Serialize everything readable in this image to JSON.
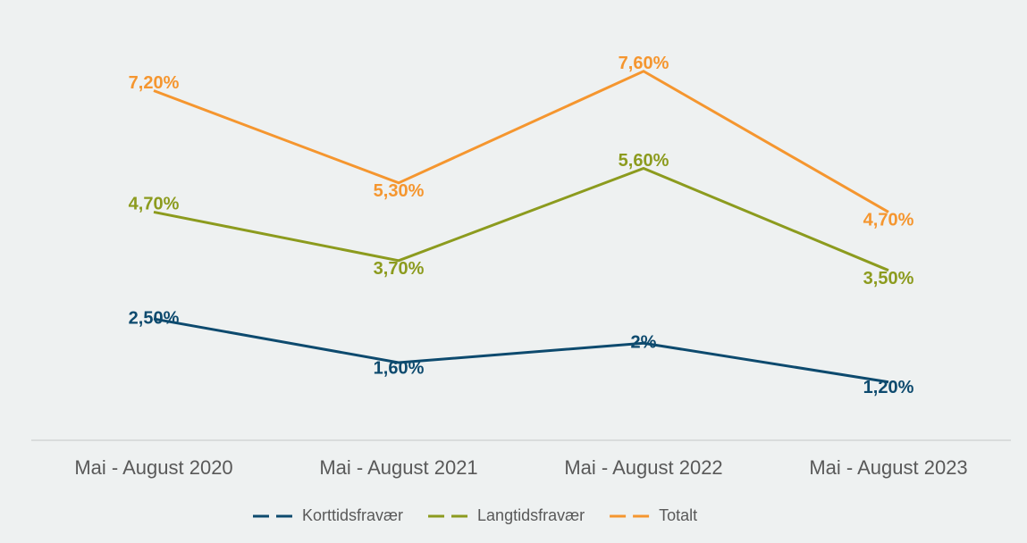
{
  "chart_data": {
    "type": "line",
    "categories": [
      "Mai - August 2020",
      "Mai - August 2021",
      "Mai - August 2022",
      "Mai - August 2023"
    ],
    "series": [
      {
        "name": "Korttidsfravær",
        "color": "#0d4a6e",
        "values": [
          2.5,
          1.6,
          2,
          1.2
        ],
        "value_labels": [
          "2,50%",
          "1,60%",
          "2%",
          "1,20%"
        ]
      },
      {
        "name": "Langtidsfravær",
        "color": "#8c9b1e",
        "values": [
          4.7,
          3.7,
          5.6,
          3.5
        ],
        "value_labels": [
          "4,70%",
          "3,70%",
          "5,60%",
          "3,50%"
        ]
      },
      {
        "name": "Totalt",
        "color": "#f5962f",
        "values": [
          7.2,
          5.3,
          7.6,
          4.7
        ],
        "value_labels": [
          "7,20%",
          "5,30%",
          "7,60%",
          "4,70%"
        ]
      }
    ],
    "ylim": [
      0,
      8
    ],
    "legend": "bottom"
  }
}
